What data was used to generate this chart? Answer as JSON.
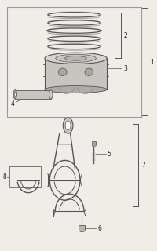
{
  "background": "#f0ede8",
  "line_color": "#555555",
  "text_color": "#222222",
  "ring_color": "#888888",
  "shadow_color": "#aaaaaa",
  "part_fill": "#d0ccc8",
  "part_fill2": "#b8b4b0",
  "white": "#ffffff"
}
